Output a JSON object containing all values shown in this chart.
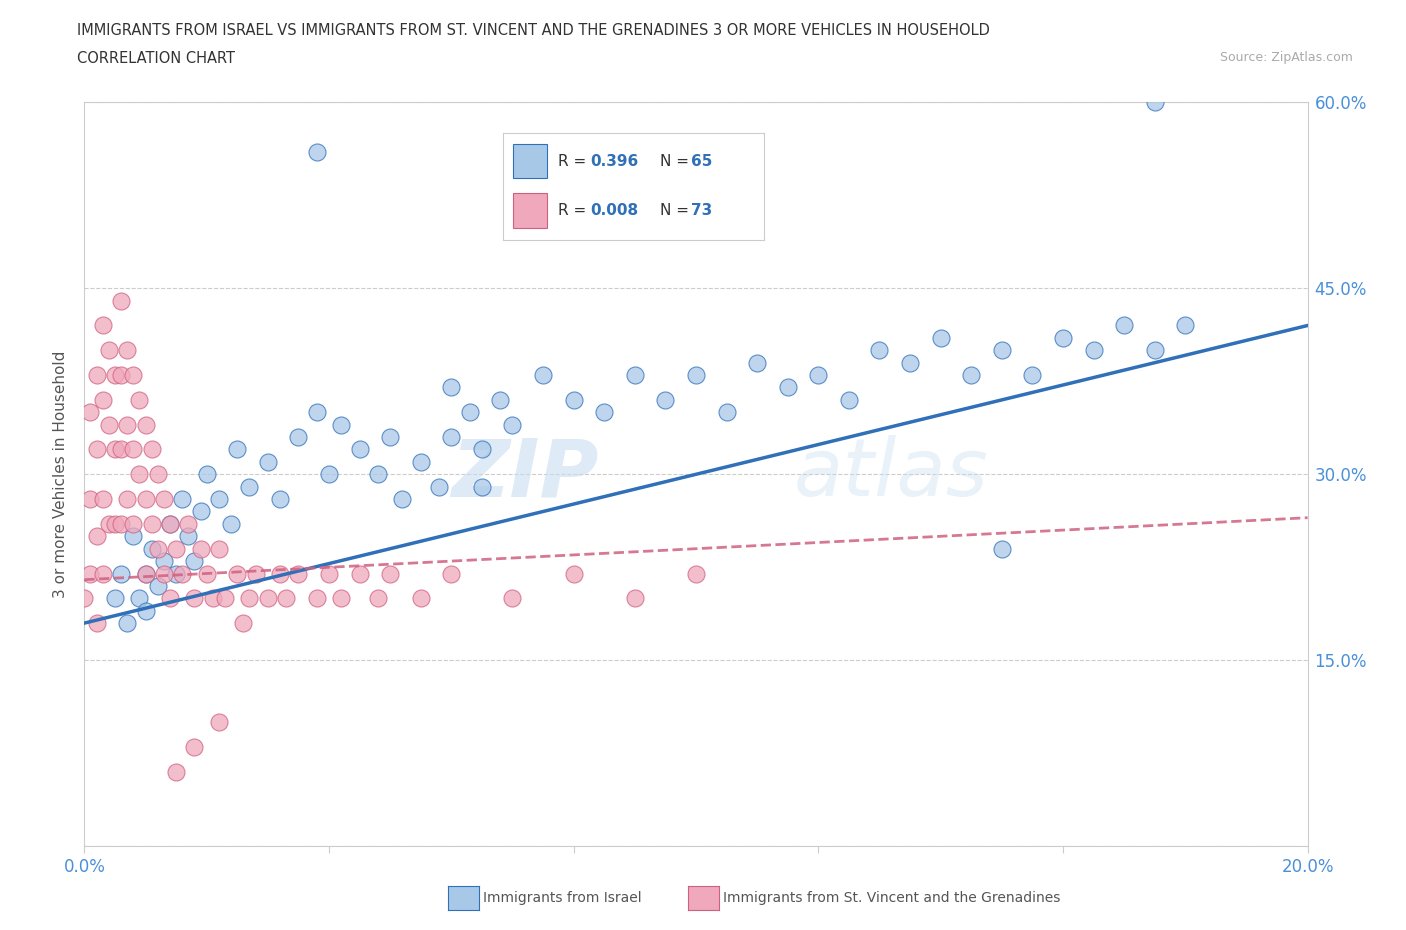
{
  "title_line1": "IMMIGRANTS FROM ISRAEL VS IMMIGRANTS FROM ST. VINCENT AND THE GRENADINES 3 OR MORE VEHICLES IN HOUSEHOLD",
  "title_line2": "CORRELATION CHART",
  "source_text": "Source: ZipAtlas.com",
  "ylabel": "3 or more Vehicles in Household",
  "xmin": 0.0,
  "xmax": 0.2,
  "ymin": 0.0,
  "ymax": 0.6,
  "x_ticks": [
    0.0,
    0.04,
    0.08,
    0.12,
    0.16,
    0.2
  ],
  "x_tick_labels": [
    "0.0%",
    "",
    "",
    "",
    "",
    "20.0%"
  ],
  "y_ticks": [
    0.0,
    0.15,
    0.3,
    0.45,
    0.6
  ],
  "y_tick_labels_right": [
    "",
    "15.0%",
    "30.0%",
    "45.0%",
    "60.0%"
  ],
  "color_israel": "#a8c8e8",
  "color_svg": "#f0a8bc",
  "trend_color_israel": "#3070b8",
  "trend_color_svg": "#d06080",
  "watermark_zip": "ZIP",
  "watermark_atlas": "atlas",
  "israel_x": [
    0.005,
    0.006,
    0.007,
    0.008,
    0.009,
    0.01,
    0.01,
    0.011,
    0.012,
    0.013,
    0.014,
    0.015,
    0.016,
    0.017,
    0.018,
    0.019,
    0.02,
    0.022,
    0.024,
    0.025,
    0.027,
    0.03,
    0.032,
    0.035,
    0.038,
    0.04,
    0.042,
    0.045,
    0.048,
    0.05,
    0.052,
    0.055,
    0.058,
    0.06,
    0.063,
    0.065,
    0.068,
    0.07,
    0.075,
    0.08,
    0.085,
    0.09,
    0.095,
    0.1,
    0.105,
    0.11,
    0.115,
    0.12,
    0.125,
    0.13,
    0.135,
    0.14,
    0.145,
    0.15,
    0.155,
    0.16,
    0.165,
    0.17,
    0.175,
    0.18,
    0.06,
    0.065,
    0.15,
    0.038,
    0.175
  ],
  "israel_y": [
    0.2,
    0.22,
    0.18,
    0.25,
    0.2,
    0.22,
    0.19,
    0.24,
    0.21,
    0.23,
    0.26,
    0.22,
    0.28,
    0.25,
    0.23,
    0.27,
    0.3,
    0.28,
    0.26,
    0.32,
    0.29,
    0.31,
    0.28,
    0.33,
    0.35,
    0.3,
    0.34,
    0.32,
    0.3,
    0.33,
    0.28,
    0.31,
    0.29,
    0.33,
    0.35,
    0.32,
    0.36,
    0.34,
    0.38,
    0.36,
    0.35,
    0.38,
    0.36,
    0.38,
    0.35,
    0.39,
    0.37,
    0.38,
    0.36,
    0.4,
    0.39,
    0.41,
    0.38,
    0.4,
    0.38,
    0.41,
    0.4,
    0.42,
    0.4,
    0.42,
    0.37,
    0.29,
    0.24,
    0.56,
    0.6
  ],
  "svgrenadines_x": [
    0.0,
    0.001,
    0.001,
    0.001,
    0.002,
    0.002,
    0.002,
    0.002,
    0.003,
    0.003,
    0.003,
    0.003,
    0.004,
    0.004,
    0.004,
    0.005,
    0.005,
    0.005,
    0.006,
    0.006,
    0.006,
    0.006,
    0.007,
    0.007,
    0.007,
    0.008,
    0.008,
    0.008,
    0.009,
    0.009,
    0.01,
    0.01,
    0.01,
    0.011,
    0.011,
    0.012,
    0.012,
    0.013,
    0.013,
    0.014,
    0.014,
    0.015,
    0.016,
    0.017,
    0.018,
    0.019,
    0.02,
    0.021,
    0.022,
    0.023,
    0.025,
    0.026,
    0.027,
    0.028,
    0.03,
    0.032,
    0.033,
    0.035,
    0.038,
    0.04,
    0.042,
    0.045,
    0.048,
    0.05,
    0.055,
    0.06,
    0.07,
    0.08,
    0.09,
    0.1,
    0.015,
    0.018,
    0.022
  ],
  "svgrenadines_y": [
    0.2,
    0.35,
    0.28,
    0.22,
    0.38,
    0.32,
    0.25,
    0.18,
    0.42,
    0.36,
    0.28,
    0.22,
    0.4,
    0.34,
    0.26,
    0.38,
    0.32,
    0.26,
    0.44,
    0.38,
    0.32,
    0.26,
    0.4,
    0.34,
    0.28,
    0.38,
    0.32,
    0.26,
    0.36,
    0.3,
    0.34,
    0.28,
    0.22,
    0.32,
    0.26,
    0.3,
    0.24,
    0.28,
    0.22,
    0.26,
    0.2,
    0.24,
    0.22,
    0.26,
    0.2,
    0.24,
    0.22,
    0.2,
    0.24,
    0.2,
    0.22,
    0.18,
    0.2,
    0.22,
    0.2,
    0.22,
    0.2,
    0.22,
    0.2,
    0.22,
    0.2,
    0.22,
    0.2,
    0.22,
    0.2,
    0.22,
    0.2,
    0.22,
    0.2,
    0.22,
    0.06,
    0.08,
    0.1
  ],
  "israel_trend_x": [
    0.0,
    0.2
  ],
  "israel_trend_y": [
    0.18,
    0.42
  ],
  "svg_trend_x": [
    0.0,
    0.2
  ],
  "svg_trend_y": [
    0.215,
    0.265
  ]
}
